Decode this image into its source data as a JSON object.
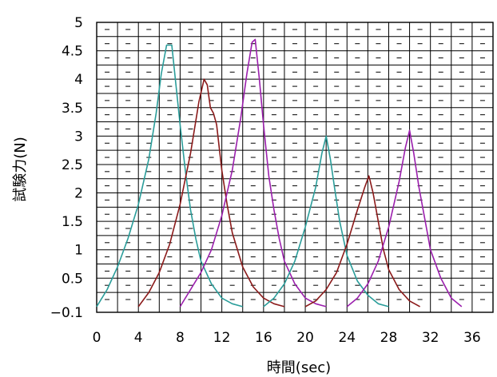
{
  "chart_data": {
    "type": "line",
    "title": "",
    "xlabel": "時間(sec)",
    "ylabel": "試験力(N)",
    "xlim": [
      0,
      38
    ],
    "ylim": [
      -0.1,
      5
    ],
    "x_ticks": [
      0,
      4,
      8,
      12,
      16,
      20,
      24,
      28,
      32,
      36
    ],
    "x_tick_labels": [
      "0",
      "4",
      "8",
      "12",
      "16",
      "20",
      "24",
      "28",
      "32",
      "36"
    ],
    "y_ticks": [
      -0.1,
      0.5,
      1,
      1.5,
      2,
      2.5,
      3,
      3.5,
      4,
      4.5,
      5
    ],
    "y_tick_labels": [
      "−0.1",
      "0.5",
      "1",
      "1.5",
      "2",
      "2.5",
      "3",
      "3.5",
      "4",
      "4.5",
      "5"
    ],
    "grid": true,
    "legend": "none",
    "series": [
      {
        "color": "#2a9d9a",
        "points": [
          [
            0,
            0.0
          ],
          [
            1,
            0.3
          ],
          [
            2,
            0.7
          ],
          [
            3,
            1.2
          ],
          [
            4,
            1.8
          ],
          [
            5,
            2.6
          ],
          [
            5.7,
            3.4
          ],
          [
            6.2,
            4.1
          ],
          [
            6.7,
            4.6
          ],
          [
            7.2,
            4.6
          ],
          [
            7.6,
            3.9
          ],
          [
            8,
            3.2
          ],
          [
            8.5,
            2.4
          ],
          [
            9,
            1.7
          ],
          [
            9.5,
            1.2
          ],
          [
            10,
            0.8
          ],
          [
            11,
            0.4
          ],
          [
            12,
            0.15
          ],
          [
            13,
            0.05
          ],
          [
            14,
            0.0
          ]
        ]
      },
      {
        "color": "#8b1a1a",
        "points": [
          [
            4,
            0.0
          ],
          [
            5,
            0.25
          ],
          [
            6,
            0.6
          ],
          [
            7,
            1.1
          ],
          [
            8,
            1.8
          ],
          [
            9,
            2.7
          ],
          [
            9.8,
            3.6
          ],
          [
            10.3,
            4.0
          ],
          [
            10.6,
            3.9
          ],
          [
            10.9,
            3.5
          ],
          [
            11.2,
            3.4
          ],
          [
            11.5,
            3.2
          ],
          [
            12,
            2.4
          ],
          [
            12.5,
            1.8
          ],
          [
            13,
            1.3
          ],
          [
            14,
            0.7
          ],
          [
            15,
            0.35
          ],
          [
            16,
            0.15
          ],
          [
            17,
            0.05
          ],
          [
            18,
            0.0
          ]
        ]
      },
      {
        "color": "#9b1fad",
        "points": [
          [
            8,
            0.0
          ],
          [
            9,
            0.3
          ],
          [
            10,
            0.6
          ],
          [
            11,
            1.0
          ],
          [
            12,
            1.6
          ],
          [
            13,
            2.4
          ],
          [
            13.8,
            3.3
          ],
          [
            14.4,
            4.1
          ],
          [
            14.9,
            4.65
          ],
          [
            15.2,
            4.7
          ],
          [
            15.6,
            4.0
          ],
          [
            16,
            3.2
          ],
          [
            16.5,
            2.3
          ],
          [
            17,
            1.7
          ],
          [
            17.5,
            1.2
          ],
          [
            18,
            0.8
          ],
          [
            19,
            0.4
          ],
          [
            20,
            0.15
          ],
          [
            21,
            0.05
          ],
          [
            22,
            0.0
          ]
        ]
      },
      {
        "color": "#2a9d9a",
        "points": [
          [
            16,
            0.0
          ],
          [
            17,
            0.15
          ],
          [
            18,
            0.4
          ],
          [
            19,
            0.8
          ],
          [
            20,
            1.4
          ],
          [
            21,
            2.1
          ],
          [
            21.6,
            2.7
          ],
          [
            22,
            3.0
          ],
          [
            22.4,
            2.6
          ],
          [
            22.8,
            2.1
          ],
          [
            23.3,
            1.5
          ],
          [
            24,
            0.9
          ],
          [
            25,
            0.45
          ],
          [
            26,
            0.2
          ],
          [
            27,
            0.05
          ],
          [
            28,
            0.0
          ]
        ]
      },
      {
        "color": "#8b1a1a",
        "points": [
          [
            20,
            0.0
          ],
          [
            21,
            0.1
          ],
          [
            22,
            0.3
          ],
          [
            23,
            0.6
          ],
          [
            24,
            1.1
          ],
          [
            25,
            1.7
          ],
          [
            25.7,
            2.1
          ],
          [
            26.1,
            2.3
          ],
          [
            26.5,
            2.0
          ],
          [
            27,
            1.5
          ],
          [
            27.5,
            1.0
          ],
          [
            28,
            0.65
          ],
          [
            29,
            0.3
          ],
          [
            30,
            0.1
          ],
          [
            31,
            0.0
          ]
        ]
      },
      {
        "color": "#9b1fad",
        "points": [
          [
            24,
            0.0
          ],
          [
            25,
            0.15
          ],
          [
            26,
            0.4
          ],
          [
            27,
            0.8
          ],
          [
            28,
            1.4
          ],
          [
            29,
            2.2
          ],
          [
            29.6,
            2.8
          ],
          [
            30,
            3.1
          ],
          [
            30.4,
            2.7
          ],
          [
            30.9,
            2.1
          ],
          [
            31.5,
            1.5
          ],
          [
            32,
            1.0
          ],
          [
            33,
            0.5
          ],
          [
            34,
            0.15
          ],
          [
            35,
            0.0
          ]
        ]
      }
    ]
  }
}
